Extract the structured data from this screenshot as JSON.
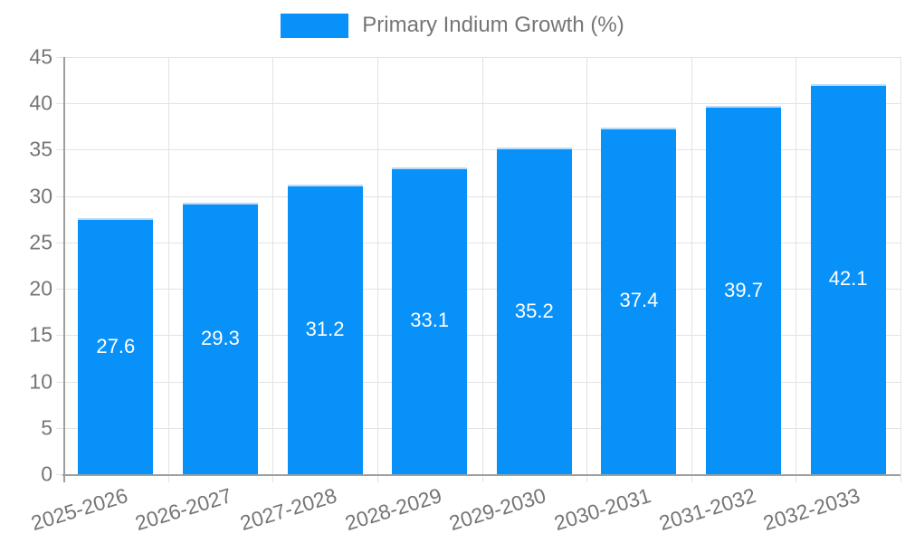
{
  "chart_data": {
    "type": "bar",
    "title": "",
    "legend": {
      "position": "top",
      "label": "Primary Indium Growth (%)"
    },
    "categories": [
      "2025-2026",
      "2026-2027",
      "2027-2028",
      "2028-2029",
      "2029-2030",
      "2030-2031",
      "2031-2032",
      "2032-2033"
    ],
    "series": [
      {
        "name": "Primary Indium Growth (%)",
        "values": [
          27.6,
          29.3,
          31.2,
          33.1,
          35.2,
          37.4,
          39.7,
          42.1
        ]
      }
    ],
    "value_labels": [
      "27.6",
      "29.3",
      "31.2",
      "33.1",
      "35.2",
      "37.4",
      "39.7",
      "42.1"
    ],
    "xlabel": "",
    "ylabel": "",
    "ylim": [
      0,
      45
    ],
    "y_ticks": [
      0,
      5,
      10,
      15,
      20,
      25,
      30,
      35,
      40,
      45
    ],
    "grid": true,
    "colors": {
      "bar": "#0991fa",
      "bar_border": "#b9dbf8",
      "grid": "#e3e3e3",
      "axis": "#9e9e9e",
      "tick_text": "#757575",
      "value_text": "#ffffff",
      "background": "#ffffff"
    }
  }
}
